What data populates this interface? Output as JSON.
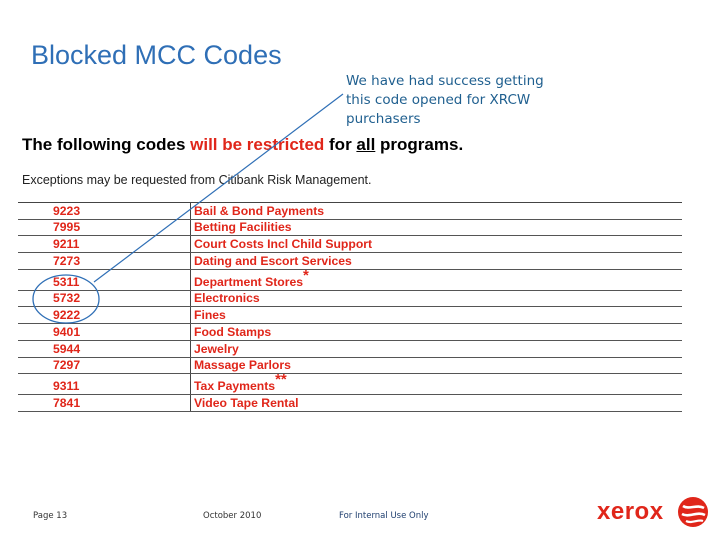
{
  "slide": {
    "title": "Blocked MCC Codes",
    "callout": "We have had success getting this code opened for XRCW purchasers"
  },
  "notice": {
    "heading_part1": "The following codes ",
    "heading_red": "will be restricted",
    "heading_part2": " for ",
    "heading_all": "all",
    "heading_part3": " programs.",
    "exceptions": "Exceptions may be requested from Citibank Risk Management."
  },
  "codes": [
    {
      "code": "9223",
      "description": "Bail & Bond Payments",
      "mark": ""
    },
    {
      "code": "7995",
      "description": "Betting Facilities",
      "mark": ""
    },
    {
      "code": "9211",
      "description": "Court Costs Incl Child Support",
      "mark": ""
    },
    {
      "code": "7273",
      "description": "Dating and Escort Services",
      "mark": ""
    },
    {
      "code": "5311",
      "description": "Department Stores",
      "mark": "*"
    },
    {
      "code": "5732",
      "description": "Electronics",
      "mark": ""
    },
    {
      "code": "9222",
      "description": "Fines",
      "mark": ""
    },
    {
      "code": "9401",
      "description": "Food Stamps",
      "mark": ""
    },
    {
      "code": "5944",
      "description": "Jewelry",
      "mark": ""
    },
    {
      "code": "7297",
      "description": "Massage Parlors",
      "mark": ""
    },
    {
      "code": "9311",
      "description": "Tax Payments",
      "mark": "**"
    },
    {
      "code": "7841",
      "description": "Video Tape Rental",
      "mark": ""
    }
  ],
  "footer": {
    "page": "Page 13",
    "date": "October 2010",
    "classification": "For Internal Use Only"
  },
  "logo": {
    "text": "xerox",
    "color": "#e0261a"
  },
  "colors": {
    "title": "#2f6fb6",
    "accent_red": "#e0261a",
    "annotation_blue": "#2f6fb6"
  }
}
